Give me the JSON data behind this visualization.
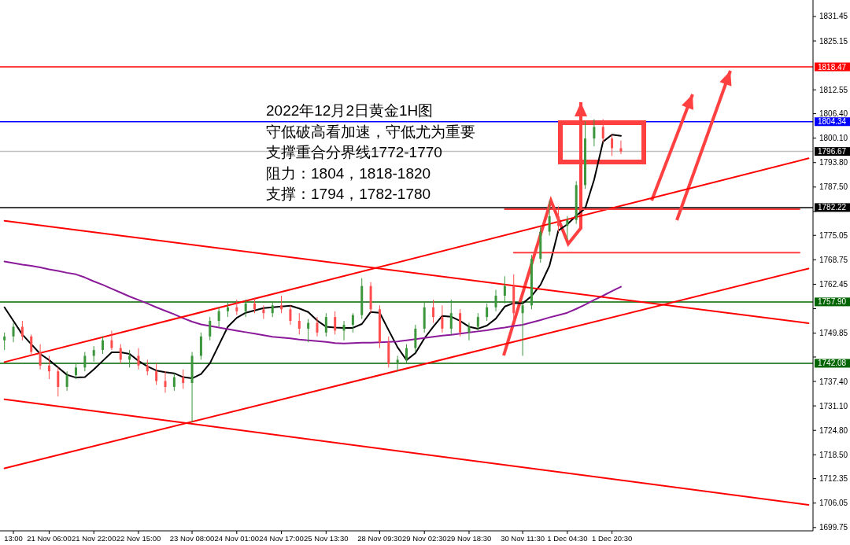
{
  "chart_data": {
    "type": "candlestick",
    "annotations": [
      "2022年12月2日黄金1H图",
      "守低破高看加速，守低尤为重要",
      "支撑重合分界线1772-1770",
      "阻力：1804，1818-1820",
      "支撑：1794，1782-1780"
    ],
    "categories": [
      null,
      "13:00",
      null,
      null,
      null,
      "21 Nov 06:00",
      null,
      null,
      null,
      null,
      "21 Nov 22:00",
      null,
      null,
      null,
      null,
      "22 Nov 15:00",
      null,
      null,
      null,
      null,
      null,
      "23 Nov 08:00",
      null,
      null,
      null,
      null,
      "24 Nov 01:00",
      null,
      null,
      null,
      null,
      "24 Nov 17:00",
      null,
      null,
      null,
      null,
      "25 Nov 13:30",
      null,
      null,
      null,
      null,
      null,
      "28 Nov 09:30",
      null,
      null,
      null,
      null,
      "29 Nov 02:30",
      null,
      null,
      null,
      null,
      "29 Nov 18:30",
      null,
      null,
      null,
      null,
      null,
      "30 Nov 11:30",
      null,
      null,
      null,
      null,
      "1 Dec 04:30",
      null,
      null,
      null,
      null,
      "1 Dec 20:30",
      null,
      null,
      null,
      null,
      null,
      null,
      null,
      null,
      null,
      null,
      null,
      null,
      null,
      null,
      null,
      null,
      null,
      null,
      null,
      null,
      null,
      null
    ],
    "ohlc": [
      [
        1748.0,
        1750.0,
        1745.5,
        1749.0
      ],
      [
        1749.0,
        1752.5,
        1747.5,
        1751.5
      ],
      [
        1751.5,
        1753.0,
        1748.0,
        1749.0
      ],
      [
        1749.0,
        1749.5,
        1744.0,
        1745.0
      ],
      [
        1745.0,
        1747.0,
        1740.5,
        1741.5
      ],
      [
        1741.5,
        1744.0,
        1738.0,
        1740.0
      ],
      [
        1740.0,
        1741.0,
        1733.5,
        1736.0
      ],
      [
        1736.0,
        1740.0,
        1735.0,
        1739.0
      ],
      [
        1739.0,
        1742.0,
        1738.0,
        1741.0
      ],
      [
        1741.0,
        1745.0,
        1740.0,
        1744.0
      ],
      [
        1744.0,
        1746.5,
        1742.5,
        1745.5
      ],
      [
        1745.5,
        1749.0,
        1744.5,
        1748.0
      ],
      [
        1748.0,
        1750.5,
        1745.5,
        1746.0
      ],
      [
        1746.0,
        1747.0,
        1742.0,
        1743.0
      ],
      [
        1743.0,
        1745.5,
        1741.0,
        1744.0
      ],
      [
        1744.0,
        1746.0,
        1740.5,
        1741.5
      ],
      [
        1741.5,
        1743.0,
        1739.0,
        1740.0
      ],
      [
        1740.0,
        1742.0,
        1736.5,
        1737.5
      ],
      [
        1737.5,
        1740.0,
        1734.5,
        1736.0
      ],
      [
        1736.0,
        1739.5,
        1735.0,
        1738.5
      ],
      [
        1738.5,
        1740.5,
        1735.5,
        1737.0
      ],
      [
        1737.0,
        1745.0,
        1726.8,
        1744.0
      ],
      [
        1744.0,
        1750.0,
        1743.0,
        1749.0
      ],
      [
        1749.0,
        1754.0,
        1748.0,
        1753.0
      ],
      [
        1753.0,
        1756.5,
        1751.5,
        1755.5
      ],
      [
        1755.5,
        1758.0,
        1754.0,
        1756.5
      ],
      [
        1756.5,
        1758.5,
        1754.5,
        1755.5
      ],
      [
        1755.5,
        1758.5,
        1754.0,
        1757.5
      ],
      [
        1757.5,
        1759.0,
        1755.0,
        1756.0
      ],
      [
        1756.0,
        1757.0,
        1753.5,
        1755.0
      ],
      [
        1755.0,
        1758.0,
        1754.0,
        1757.0
      ],
      [
        1757.0,
        1759.5,
        1755.0,
        1756.0
      ],
      [
        1756.0,
        1757.0,
        1752.0,
        1753.0
      ],
      [
        1753.0,
        1755.0,
        1749.5,
        1751.0
      ],
      [
        1751.0,
        1753.5,
        1747.5,
        1752.5
      ],
      [
        1752.5,
        1754.0,
        1749.0,
        1750.0
      ],
      [
        1750.0,
        1755.0,
        1749.0,
        1754.0
      ],
      [
        1754.0,
        1755.5,
        1749.5,
        1750.5
      ],
      [
        1750.5,
        1753.0,
        1748.0,
        1752.0
      ],
      [
        1752.0,
        1755.0,
        1750.0,
        1754.5
      ],
      [
        1754.5,
        1764.0,
        1753.5,
        1762.0
      ],
      [
        1762.0,
        1763.0,
        1755.0,
        1756.0
      ],
      [
        1756.0,
        1757.0,
        1746.0,
        1747.5
      ],
      [
        1747.5,
        1749.0,
        1741.0,
        1742.0
      ],
      [
        1742.0,
        1744.0,
        1740.0,
        1743.0
      ],
      [
        1743.0,
        1747.0,
        1742.0,
        1746.0
      ],
      [
        1746.0,
        1752.0,
        1745.0,
        1751.0
      ],
      [
        1751.0,
        1758.0,
        1750.0,
        1756.5
      ],
      [
        1756.5,
        1758.5,
        1752.5,
        1754.0
      ],
      [
        1754.0,
        1757.0,
        1750.0,
        1751.0
      ],
      [
        1751.0,
        1758.5,
        1749.5,
        1755.0
      ],
      [
        1755.0,
        1756.0,
        1749.0,
        1750.0
      ],
      [
        1750.0,
        1752.5,
        1748.0,
        1751.5
      ],
      [
        1751.5,
        1755.0,
        1750.5,
        1754.0
      ],
      [
        1754.0,
        1757.5,
        1753.0,
        1756.5
      ],
      [
        1756.5,
        1761.0,
        1755.5,
        1759.5
      ],
      [
        1759.5,
        1764.5,
        1757.5,
        1762.0
      ],
      [
        1762.0,
        1765.0,
        1753.0,
        1755.0
      ],
      [
        1755.0,
        1758.0,
        1744.0,
        1757.0
      ],
      [
        1757.0,
        1770.0,
        1756.0,
        1769.0
      ],
      [
        1769.0,
        1777.5,
        1768.0,
        1776.0
      ],
      [
        1776.0,
        1784.0,
        1775.0,
        1780.0
      ],
      [
        1780.0,
        1782.5,
        1776.0,
        1777.5
      ],
      [
        1777.5,
        1780.0,
        1774.0,
        1779.0
      ],
      [
        1779.0,
        1789.0,
        1778.0,
        1788.0
      ],
      [
        1788.0,
        1804.5,
        1787.0,
        1800.0
      ],
      [
        1800.0,
        1805.0,
        1798.0,
        1803.0
      ],
      [
        1803.0,
        1805.0,
        1799.0,
        1800.0
      ],
      [
        1800.0,
        1801.0,
        1795.5,
        1797.5
      ],
      [
        1797.5,
        1799.5,
        1796.0,
        1796.67
      ],
      null,
      null,
      null,
      null,
      null,
      null,
      null,
      null,
      null,
      null,
      null,
      null,
      null,
      null,
      null,
      null,
      null,
      null,
      null,
      null,
      null
    ],
    "colors": [
      "#3c963c",
      "#3c963c",
      "#ff4d4d",
      "#ff4d4d",
      "#ff4d4d",
      "#ff4d4d",
      "#ff4d4d",
      "#3c963c",
      "#3c963c",
      "#3c963c",
      "#3c963c",
      "#3c963c",
      "#ff4d4d",
      "#ff4d4d",
      "#3c963c",
      "#ff4d4d",
      "#ff4d4d",
      "#ff4d4d",
      "#ff4d4d",
      "#3c963c",
      "#ff4d4d",
      "#3c963c",
      "#3c963c",
      "#3c963c",
      "#3c963c",
      "#3c963c",
      "#ff4d4d",
      "#3c963c",
      "#ff4d4d",
      "#ff4d4d",
      "#3c963c",
      "#ff4d4d",
      "#ff4d4d",
      "#ff4d4d",
      "#3c963c",
      "#ff4d4d",
      "#3c963c",
      "#ff4d4d",
      "#3c963c",
      "#3c963c",
      "#3c963c",
      "#ff4d4d",
      "#ff4d4d",
      "#ff4d4d",
      "#3c963c",
      "#3c963c",
      "#3c963c",
      "#3c963c",
      "#ff4d4d",
      "#ff4d4d",
      "#3c963c",
      "#ff4d4d",
      "#3c963c",
      "#3c963c",
      "#3c963c",
      "#3c963c",
      "#3c963c",
      "#ff4d4d",
      "#3c963c",
      "#3c963c",
      "#3c963c",
      "#3c963c",
      "#ff4d4d",
      "#3c963c",
      "#3c963c",
      "#3c963c",
      "#3c963c",
      "#ff4d4d",
      "#ff4d4d",
      "#ff4d4d",
      null,
      null,
      null,
      null,
      null,
      null,
      null,
      null,
      null,
      null,
      null,
      null,
      null,
      null,
      null,
      null,
      null,
      null,
      null,
      null,
      null
    ],
    "series": [
      {
        "type": "line",
        "color": "#000000",
        "values": [
          1756.5,
          1753.0,
          1749.5,
          1747.0,
          1744.5,
          1742.9,
          1741.0,
          1739.1,
          1738.4,
          1738.5,
          1740.5,
          1742.7,
          1744.9,
          1744.9,
          1744.5,
          1742.7,
          1741.3,
          1740.2,
          1739.8,
          1739.5,
          1738.5,
          1738.2,
          1739.3,
          1742.1,
          1746.8,
          1751.5,
          1753.8,
          1755.1,
          1755.7,
          1756.3,
          1756.5,
          1756.7,
          1756.9,
          1756.2,
          1755.3,
          1753.1,
          1751.5,
          1751.3,
          1751.2,
          1751.2,
          1752.2,
          1755.3,
          1755.1,
          1750.6,
          1746.2,
          1742.9,
          1744.7,
          1748.5,
          1751.5,
          1754.3,
          1754.1,
          1753.0,
          1751.5,
          1751.0,
          1751.8,
          1753.6,
          1756.7,
          1757.6,
          1757.5,
          1759.4,
          1762.3,
          1767.2,
          1776.3,
          1777.9,
          1780.1,
          1782.0,
          1789.4,
          1799.2,
          1801.0,
          1800.7,
          null,
          null,
          null,
          null,
          null,
          null,
          null,
          null,
          null,
          null,
          null,
          null,
          null,
          null,
          null,
          null,
          null,
          null,
          null,
          null,
          null
        ]
      },
      {
        "type": "line",
        "color": "#8b1a9b",
        "values": [
          1768.3,
          1767.9,
          1767.5,
          1767.2,
          1766.8,
          1766.3,
          1765.9,
          1765.4,
          1765.0,
          1764.2,
          1763.2,
          1762.3,
          1761.3,
          1760.3,
          1759.3,
          1758.4,
          1757.5,
          1756.5,
          1755.6,
          1754.7,
          1753.7,
          1752.8,
          1752.1,
          1751.7,
          1751.3,
          1750.9,
          1750.5,
          1750.1,
          1749.7,
          1749.3,
          1748.9,
          1748.7,
          1748.5,
          1748.2,
          1748.0,
          1747.8,
          1747.6,
          1747.3,
          1747.2,
          1747.3,
          1747.4,
          1747.4,
          1747.5,
          1747.6,
          1747.7,
          1748.0,
          1748.3,
          1748.6,
          1748.9,
          1749.2,
          1749.4,
          1749.7,
          1750.0,
          1750.3,
          1750.6,
          1751.0,
          1751.3,
          1751.7,
          1752.0,
          1752.6,
          1753.2,
          1753.9,
          1754.5,
          1755.1,
          1756.1,
          1757.2,
          1758.4,
          1759.5,
          1760.7,
          1761.8,
          null,
          null,
          null,
          null,
          null,
          null,
          null,
          null,
          null,
          null,
          null,
          null,
          null,
          null,
          null,
          null,
          null,
          null,
          null,
          null,
          null
        ]
      },
      {
        "type": "line",
        "color": "#ff0000",
        "values": [
          1778.8,
          null,
          null,
          null,
          null,
          null,
          null,
          null,
          null,
          null,
          null,
          null,
          null,
          null,
          null,
          null,
          null,
          null,
          null,
          null,
          null,
          null,
          null,
          null,
          null,
          null,
          null,
          null,
          null,
          null,
          null,
          null,
          null,
          null,
          null,
          null,
          null,
          null,
          null,
          null,
          null,
          null,
          null,
          null,
          null,
          null,
          null,
          null,
          null,
          null,
          null,
          null,
          null,
          null,
          null,
          null,
          null,
          null,
          null,
          null,
          null,
          null,
          null,
          null,
          null,
          null,
          null,
          null,
          null,
          null,
          null,
          null,
          null,
          null,
          null,
          null,
          null,
          null,
          null,
          null,
          null,
          null,
          null,
          null,
          null,
          null,
          null,
          null,
          null,
          null,
          1752.4
        ]
      },
      {
        "type": "line",
        "color": "#ff0000",
        "values": [
          1732.8,
          null,
          null,
          null,
          null,
          null,
          null,
          null,
          null,
          null,
          null,
          null,
          null,
          null,
          null,
          null,
          null,
          null,
          null,
          null,
          null,
          null,
          null,
          null,
          null,
          null,
          null,
          null,
          null,
          null,
          null,
          null,
          null,
          null,
          null,
          null,
          null,
          null,
          null,
          null,
          null,
          null,
          null,
          null,
          null,
          null,
          null,
          null,
          null,
          null,
          null,
          null,
          null,
          null,
          null,
          null,
          null,
          null,
          null,
          null,
          null,
          null,
          null,
          null,
          null,
          null,
          null,
          null,
          null,
          null,
          null,
          null,
          null,
          null,
          null,
          null,
          null,
          null,
          null,
          null,
          null,
          null,
          null,
          null,
          null,
          null,
          null,
          null,
          null,
          null,
          1705.6
        ]
      },
      {
        "type": "line",
        "color": "#ff0000",
        "values": [
          1742.4,
          null,
          null,
          null,
          null,
          null,
          null,
          null,
          null,
          null,
          null,
          null,
          null,
          null,
          null,
          null,
          null,
          null,
          null,
          null,
          null,
          null,
          null,
          null,
          null,
          null,
          null,
          null,
          null,
          null,
          null,
          null,
          null,
          null,
          null,
          null,
          null,
          null,
          null,
          null,
          null,
          null,
          null,
          null,
          null,
          null,
          null,
          null,
          null,
          null,
          null,
          null,
          null,
          null,
          null,
          null,
          null,
          null,
          null,
          null,
          null,
          null,
          null,
          null,
          null,
          null,
          null,
          null,
          null,
          null,
          null,
          null,
          null,
          null,
          null,
          null,
          null,
          null,
          null,
          null,
          null,
          null,
          null,
          null,
          null,
          null,
          null,
          null,
          null,
          null,
          1794.9
        ]
      },
      {
        "type": "line",
        "color": "#ff0000",
        "values": [
          1715.0,
          null,
          null,
          null,
          null,
          null,
          null,
          null,
          null,
          null,
          null,
          null,
          null,
          null,
          null,
          null,
          null,
          null,
          null,
          null,
          null,
          null,
          null,
          null,
          null,
          null,
          null,
          null,
          null,
          null,
          null,
          null,
          null,
          null,
          null,
          null,
          null,
          null,
          null,
          null,
          null,
          null,
          null,
          null,
          null,
          null,
          null,
          null,
          null,
          null,
          null,
          null,
          null,
          null,
          null,
          null,
          null,
          null,
          null,
          null,
          null,
          null,
          null,
          null,
          null,
          null,
          null,
          null,
          null,
          null,
          null,
          null,
          null,
          null,
          null,
          null,
          null,
          null,
          null,
          null,
          null,
          null,
          null,
          null,
          null,
          null,
          null,
          null,
          null,
          null,
          1766.5
        ]
      },
      {
        "type": "line",
        "color": "#ff4040",
        "values": [
          null,
          null,
          null,
          null,
          null,
          null,
          null,
          null,
          null,
          null,
          null,
          null,
          null,
          null,
          null,
          null,
          null,
          null,
          null,
          null,
          null,
          null,
          null,
          null,
          null,
          null,
          null,
          null,
          null,
          null,
          null,
          null,
          null,
          null,
          null,
          null,
          null,
          null,
          null,
          null,
          null,
          null,
          null,
          null,
          null,
          null,
          null,
          null,
          null,
          null,
          null,
          null,
          null,
          null,
          null,
          null,
          1781.8,
          null,
          null,
          null,
          null,
          null,
          null,
          null,
          null,
          null,
          null,
          null,
          null,
          null,
          null,
          null,
          null,
          null,
          null,
          null,
          null,
          null,
          null,
          null,
          null,
          null,
          null,
          null,
          null,
          null,
          null,
          null,
          null,
          1781.8,
          null
        ]
      },
      {
        "type": "line",
        "color": "#ff4040",
        "values": [
          null,
          null,
          null,
          null,
          null,
          null,
          null,
          null,
          null,
          null,
          null,
          null,
          null,
          null,
          null,
          null,
          null,
          null,
          null,
          null,
          null,
          null,
          null,
          null,
          null,
          null,
          null,
          null,
          null,
          null,
          null,
          null,
          null,
          null,
          null,
          null,
          null,
          null,
          null,
          null,
          null,
          null,
          null,
          null,
          null,
          null,
          null,
          null,
          null,
          null,
          null,
          null,
          null,
          null,
          null,
          null,
          null,
          1770.6,
          null,
          null,
          null,
          null,
          null,
          null,
          null,
          null,
          null,
          null,
          null,
          null,
          null,
          null,
          null,
          null,
          null,
          null,
          null,
          null,
          null,
          null,
          null,
          null,
          null,
          null,
          null,
          null,
          null,
          null,
          null,
          1770.6,
          null
        ]
      }
    ],
    "ref_lines": [
      {
        "axis": "y",
        "value": 1818.47,
        "label": "1818.47",
        "color": "#ff0000"
      },
      {
        "axis": "y",
        "value": 1804.34,
        "label": "1804.34",
        "color": "#0000ff"
      },
      {
        "axis": "y",
        "value": 1796.67,
        "label": "1796.67",
        "color": "#c0c0c0"
      },
      {
        "axis": "y",
        "value": 1782.22,
        "label": "1782.22",
        "color": "#000000"
      },
      {
        "axis": "y",
        "value": 1757.9,
        "label": "1757.90",
        "color": "#006400"
      },
      {
        "axis": "y",
        "value": 1742.08,
        "label": "1742.08",
        "color": "#006400"
      }
    ],
    "ylim": [
      1698.9,
      1835.7
    ],
    "yticks": [
      1831.45,
      1825.15,
      1812.55,
      {
        "value": 1806.4,
        "label": "1806.40"
      },
      {
        "value": 1800.1,
        "label": "1800.10"
      },
      {
        "value": 1793.8,
        "label": "1793.80"
      },
      {
        "value": 1787.5,
        "label": "1787.50"
      },
      {
        "value": 1781.2,
        "label": null
      },
      1775.05,
      1768.75,
      1762.45,
      {
        "value": 1756.15,
        "label": null
      },
      1749.85,
      {
        "value": 1743.7,
        "label": null
      },
      {
        "value": 1737.4,
        "label": "1737.40"
      },
      {
        "value": 1731.1,
        "label": "1731.10"
      },
      {
        "value": 1724.8,
        "label": "1724.80"
      },
      {
        "value": 1718.5,
        "label": "1718.50"
      },
      1712.35,
      1706.05,
      1699.75
    ],
    "grid": false
  }
}
